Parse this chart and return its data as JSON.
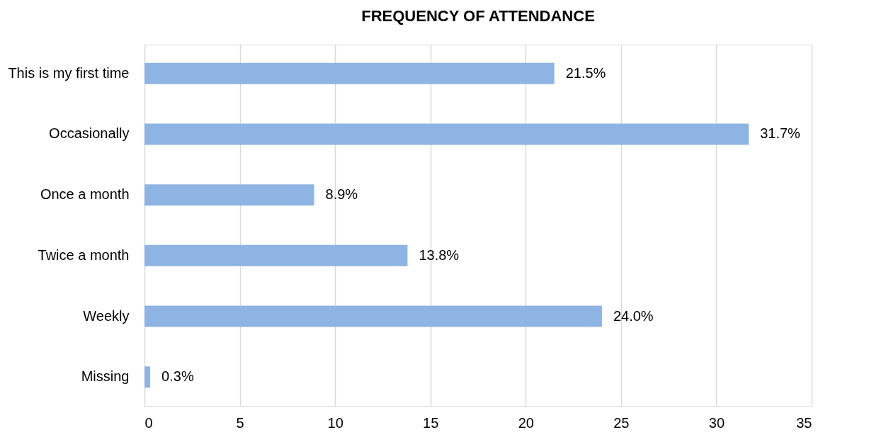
{
  "chart_data": {
    "type": "bar",
    "orientation": "horizontal",
    "title": "FREQUENCY OF ATTENDANCE",
    "categories": [
      "This is my first time",
      "Occasionally",
      "Once a month",
      "Twice a month",
      "Weekly",
      "Missing"
    ],
    "values": [
      21.5,
      31.7,
      8.9,
      13.8,
      24.0,
      0.3
    ],
    "value_labels": [
      "21.5%",
      "31.7%",
      "8.9%",
      "13.8%",
      "24.0%",
      "0.3%"
    ],
    "color": "#8eb4e3",
    "xlim": [
      0,
      35
    ],
    "xticks": [
      0,
      5,
      10,
      15,
      20,
      25,
      30,
      35
    ],
    "grid": "x"
  }
}
